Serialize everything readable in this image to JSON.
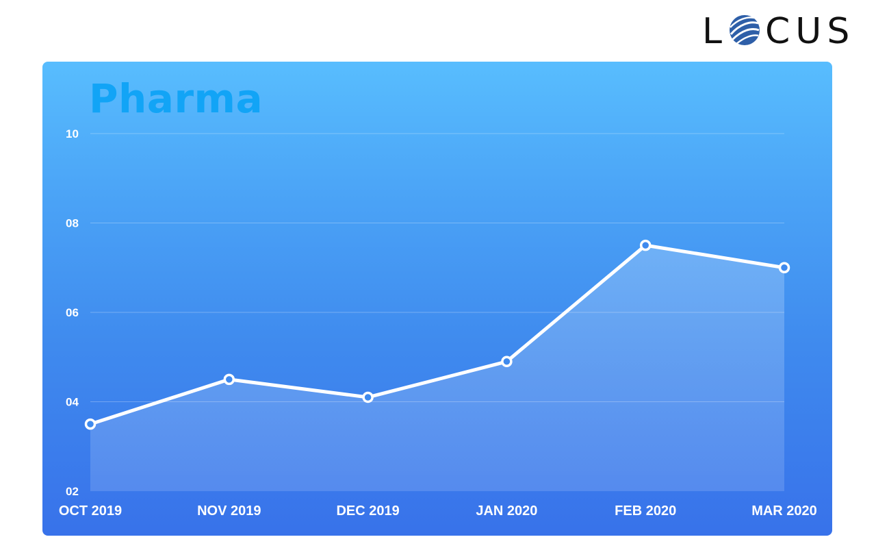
{
  "brand": {
    "name": "LOCUS",
    "letters_before": "L",
    "letters_after": "CUS",
    "accent_color": "#2e5fa8"
  },
  "colors": {
    "title": "#12a4f6",
    "line": "#ffffff",
    "panel_top": "#58bdfe",
    "panel_bottom": "#3872ea"
  },
  "chart_data": {
    "type": "area",
    "title": "Pharma",
    "xlabel": "",
    "ylabel": "",
    "categories": [
      "OCT 2019",
      "NOV 2019",
      "DEC 2019",
      "JAN 2020",
      "FEB 2020",
      "MAR 2020"
    ],
    "values": [
      3.5,
      4.5,
      4.1,
      4.9,
      7.5,
      7.0
    ],
    "ylim": [
      2,
      10
    ],
    "yticks": [
      2,
      4,
      6,
      8,
      10
    ],
    "ytick_labels": [
      "02",
      "04",
      "06",
      "08",
      "10"
    ],
    "grid": true,
    "legend": "none"
  }
}
